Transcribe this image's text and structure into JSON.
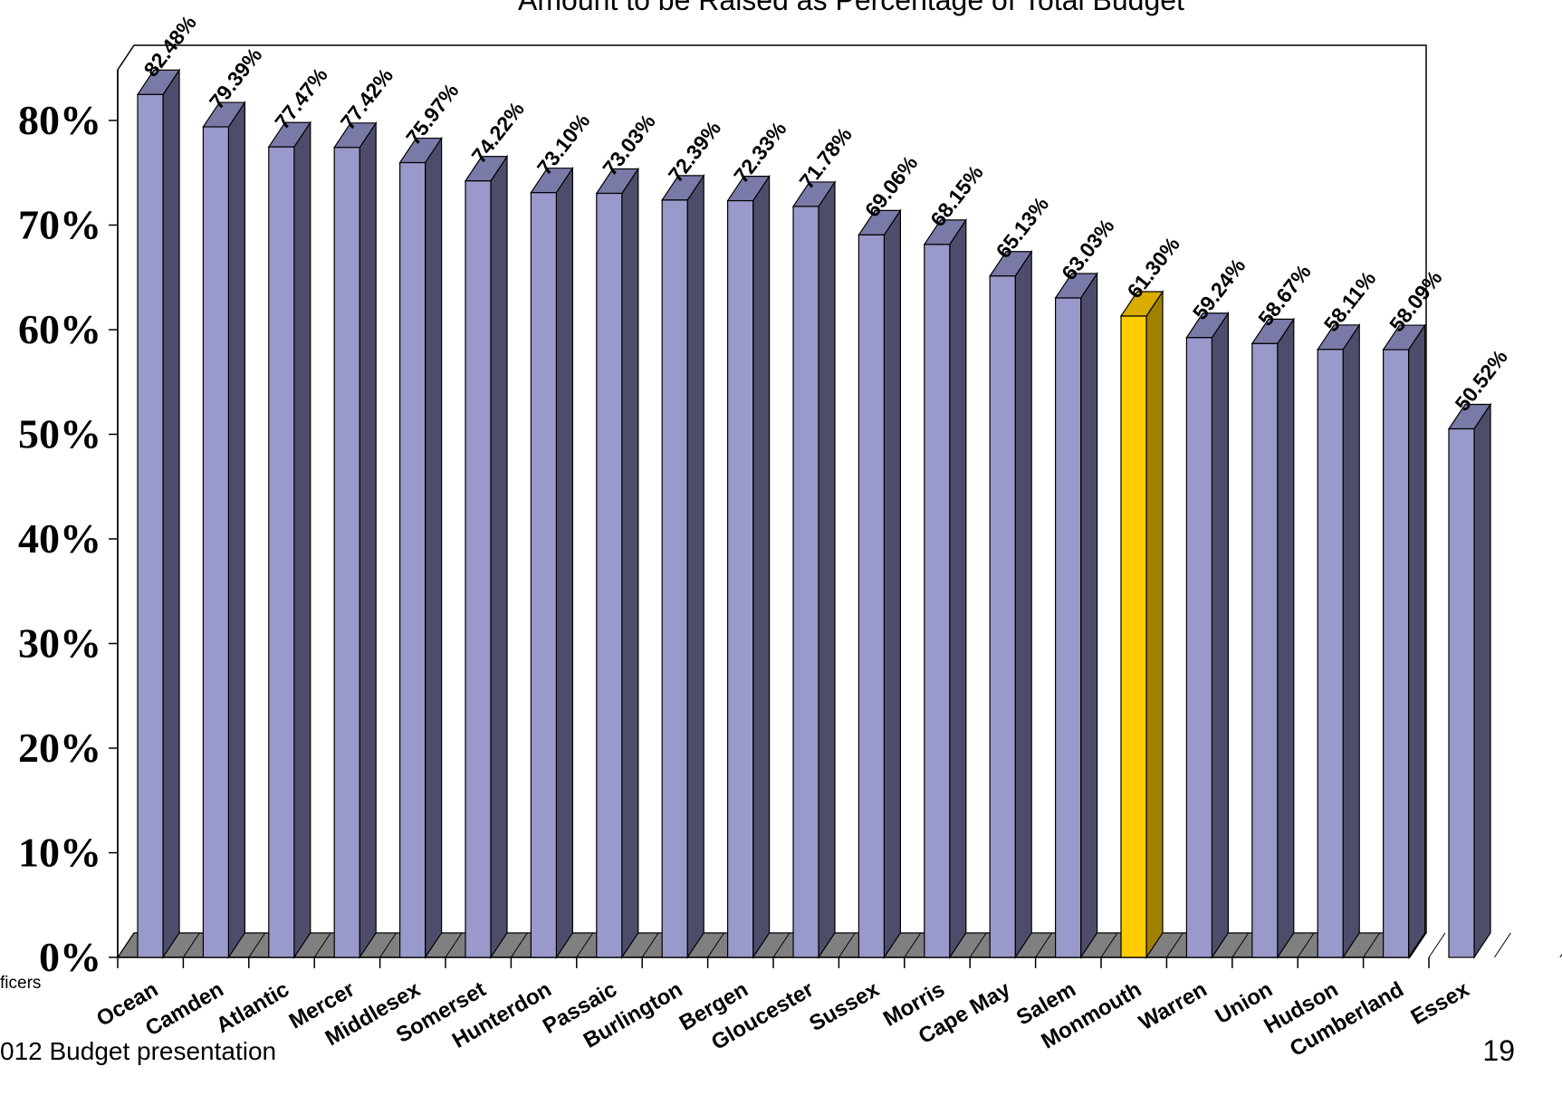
{
  "chart_data": {
    "type": "bar",
    "title": "Amount to be Raised as Percentage of Total Budget",
    "categories": [
      "Ocean",
      "Camden",
      "Atlantic",
      "Mercer",
      "Middlesex",
      "Somerset",
      "Hunterdon",
      "Passaic",
      "Burlington",
      "Bergen",
      "Gloucester",
      "Sussex",
      "Morris",
      "Cape May",
      "Salem",
      "Monmouth",
      "Warren",
      "Union",
      "Hudson",
      "Cumberland",
      "Essex"
    ],
    "values": [
      82.48,
      79.39,
      77.47,
      77.42,
      75.97,
      74.22,
      73.1,
      73.03,
      72.39,
      72.33,
      71.78,
      69.06,
      68.15,
      65.13,
      63.03,
      61.3,
      59.24,
      58.67,
      58.11,
      58.09,
      50.52
    ],
    "data_labels": [
      "82.48%",
      "79.39%",
      "77.47%",
      "77.42%",
      "75.97%",
      "74.22%",
      "73.10%",
      "73.03%",
      "72.39%",
      "72.33%",
      "71.78%",
      "69.06%",
      "68.15%",
      "65.13%",
      "63.03%",
      "61.30%",
      "59.24%",
      "58.67%",
      "58.11%",
      "58.09%",
      "50.52%"
    ],
    "highlight_category": "Monmouth",
    "yticks": [
      "0%",
      "10%",
      "20%",
      "30%",
      "40%",
      "50%",
      "60%",
      "70%",
      "80%"
    ],
    "ylim": [
      0,
      100
    ],
    "xlabel": "",
    "ylabel": "",
    "grid": false,
    "three_d": true,
    "colors": {
      "bar_front": "#9999cc",
      "bar_top": "#7a7aa8",
      "bar_side": "#4d4d6b",
      "highlight_front": "#ffcc00",
      "highlight_top": "#d9ac00",
      "highlight_side": "#a08000",
      "floor": "#808080",
      "outline": "#000000"
    }
  },
  "footer": {
    "left_top": "ficers",
    "left_bottom": "012 Budget presentation",
    "page_number": "19"
  }
}
